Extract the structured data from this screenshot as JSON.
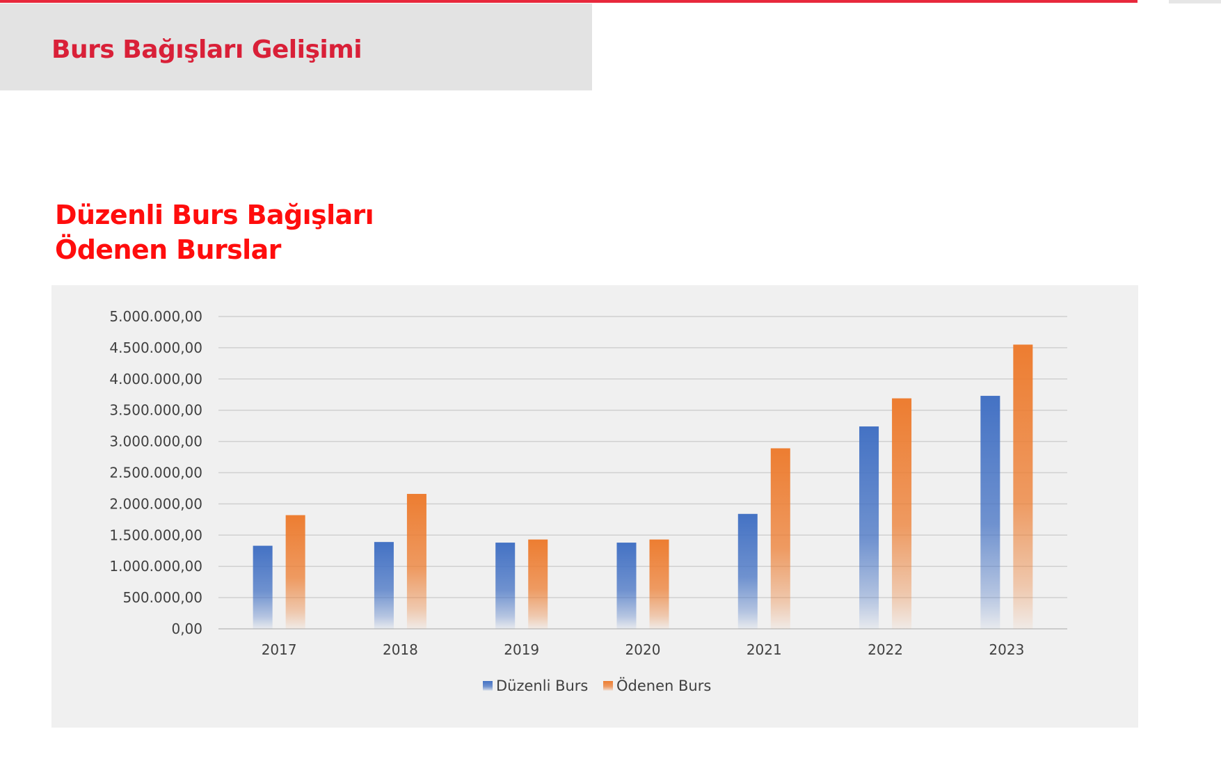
{
  "header": {
    "title": "Burs Bağışları Gelişimi"
  },
  "section": {
    "title_line1": "Düzenli Burs Bağışları",
    "title_line2": "Ödenen Burslar"
  },
  "colors": {
    "accent_red": "#e8283c",
    "title_red": "#ff0d0d",
    "series_blue": "#4472c4",
    "series_orange": "#ed7d31"
  },
  "chart_data": {
    "type": "bar",
    "categories": [
      "2017",
      "2018",
      "2019",
      "2020",
      "2021",
      "2022",
      "2023"
    ],
    "series": [
      {
        "name": "Düzenli Burs",
        "color": "#4472c4",
        "values": [
          1330000,
          1390000,
          1380000,
          1380000,
          1840000,
          3240000,
          3730000
        ]
      },
      {
        "name": "Ödenen Burs",
        "color": "#ed7d31",
        "values": [
          1820000,
          2160000,
          1430000,
          1430000,
          2890000,
          3690000,
          4550000
        ]
      }
    ],
    "y_ticks": [
      "0,00",
      "500.000,00",
      "1.000.000,00",
      "1.500.000,00",
      "2.000.000,00",
      "2.500.000,00",
      "3.000.000,00",
      "3.500.000,00",
      "4.000.000,00",
      "4.500.000,00",
      "5.000.000,00"
    ],
    "ylim": [
      0,
      5000000
    ],
    "y_step": 500000,
    "grid": true,
    "legend_position": "bottom",
    "title": "",
    "xlabel": "",
    "ylabel": ""
  }
}
